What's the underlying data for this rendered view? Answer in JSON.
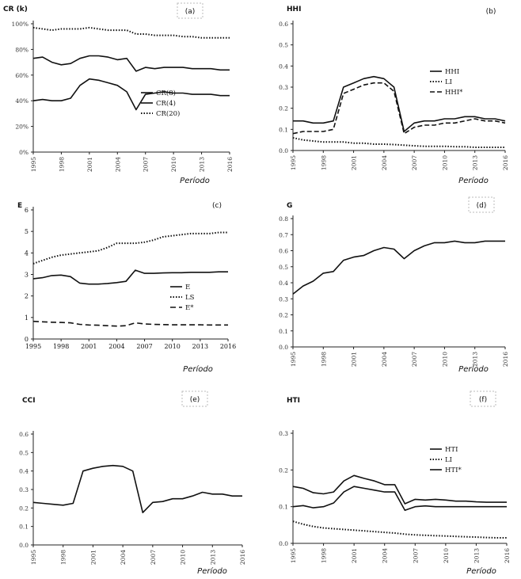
{
  "chart_data": [
    {
      "panel": "(a)",
      "type": "line",
      "ylabel": "CR (k)",
      "xlabel": "Período",
      "ylim": [
        0,
        100
      ],
      "yticks": [
        "0%",
        "20%",
        "40%",
        "60%",
        "80%",
        "100%"
      ],
      "xticks": [
        "1995",
        "1998",
        "2001",
        "2004",
        "2007",
        "2010",
        "2013",
        "2016"
      ],
      "x": [
        1995,
        1996,
        1997,
        1998,
        1999,
        2000,
        2001,
        2002,
        2003,
        2004,
        2005,
        2006,
        2007,
        2008,
        2009,
        2010,
        2011,
        2012,
        2013,
        2014,
        2015,
        2016
      ],
      "series": [
        {
          "name": "CR(8)",
          "style": "solid",
          "values": [
            73,
            74,
            70,
            68,
            69,
            73,
            75,
            75,
            74,
            72,
            73,
            63,
            66,
            65,
            66,
            66,
            66,
            65,
            65,
            65,
            64,
            64
          ]
        },
        {
          "name": "CR(4)",
          "style": "solid",
          "values": [
            40,
            41,
            40,
            40,
            42,
            52,
            57,
            56,
            54,
            52,
            47,
            33,
            45,
            46,
            47,
            46,
            46,
            45,
            45,
            45,
            44,
            44
          ]
        },
        {
          "name": "CR(20)",
          "style": "dotted",
          "values": [
            97,
            96,
            95,
            96,
            96,
            96,
            97,
            96,
            95,
            95,
            95,
            92,
            92,
            91,
            91,
            91,
            90,
            90,
            89,
            89,
            89,
            89
          ]
        }
      ]
    },
    {
      "panel": "(b)",
      "type": "line",
      "ylabel": "HHI",
      "xlabel": "Período",
      "ylim": [
        0,
        0.6
      ],
      "yticks": [
        "0.0",
        "0.1",
        "0.2",
        "0.3",
        "0.4",
        "0.5",
        "0.6"
      ],
      "xticks": [
        "1995",
        "1998",
        "2001",
        "2004",
        "2007",
        "2010",
        "2013",
        "2016"
      ],
      "x": [
        1995,
        1996,
        1997,
        1998,
        1999,
        2000,
        2001,
        2002,
        2003,
        2004,
        2005,
        2006,
        2007,
        2008,
        2009,
        2010,
        2011,
        2012,
        2013,
        2014,
        2015,
        2016
      ],
      "series": [
        {
          "name": "HHI",
          "style": "solid",
          "values": [
            0.14,
            0.14,
            0.13,
            0.13,
            0.14,
            0.3,
            0.32,
            0.34,
            0.35,
            0.34,
            0.3,
            0.09,
            0.13,
            0.14,
            0.14,
            0.15,
            0.15,
            0.16,
            0.16,
            0.15,
            0.15,
            0.14
          ]
        },
        {
          "name": "LI",
          "style": "dotted",
          "values": [
            0.06,
            0.05,
            0.045,
            0.04,
            0.04,
            0.04,
            0.035,
            0.035,
            0.03,
            0.03,
            0.028,
            0.025,
            0.022,
            0.02,
            0.02,
            0.02,
            0.018,
            0.018,
            0.015,
            0.015,
            0.015,
            0.015
          ]
        },
        {
          "name": "HHI*",
          "style": "dashed",
          "values": [
            0.08,
            0.09,
            0.09,
            0.09,
            0.1,
            0.27,
            0.29,
            0.31,
            0.32,
            0.32,
            0.28,
            0.08,
            0.11,
            0.12,
            0.12,
            0.13,
            0.13,
            0.14,
            0.15,
            0.14,
            0.14,
            0.13
          ]
        }
      ]
    },
    {
      "panel": "(c)",
      "type": "line",
      "ylabel": "E",
      "xlabel": "Período",
      "ylim": [
        0,
        6
      ],
      "yticks": [
        "0",
        "1",
        "2",
        "3",
        "4",
        "5",
        "6"
      ],
      "xticks": [
        "1995",
        "1998",
        "2001",
        "2004",
        "2007",
        "2010",
        "2013",
        "2016"
      ],
      "x": [
        1995,
        1996,
        1997,
        1998,
        1999,
        2000,
        2001,
        2002,
        2003,
        2004,
        2005,
        2006,
        2007,
        2008,
        2009,
        2010,
        2011,
        2012,
        2013,
        2014,
        2015,
        2016
      ],
      "series": [
        {
          "name": "E",
          "style": "solid",
          "values": [
            2.8,
            2.85,
            2.95,
            2.97,
            2.9,
            2.6,
            2.55,
            2.55,
            2.58,
            2.62,
            2.68,
            3.2,
            3.05,
            3.05,
            3.07,
            3.08,
            3.08,
            3.1,
            3.1,
            3.1,
            3.12,
            3.12
          ]
        },
        {
          "name": "LS",
          "style": "dotted",
          "values": [
            3.5,
            3.65,
            3.8,
            3.9,
            3.95,
            4.0,
            4.05,
            4.1,
            4.25,
            4.45,
            4.45,
            4.45,
            4.5,
            4.6,
            4.75,
            4.8,
            4.85,
            4.9,
            4.9,
            4.9,
            4.95,
            4.95
          ]
        },
        {
          "name": "E*",
          "style": "dashed",
          "values": [
            0.82,
            0.8,
            0.78,
            0.77,
            0.75,
            0.68,
            0.65,
            0.64,
            0.62,
            0.6,
            0.62,
            0.75,
            0.7,
            0.68,
            0.67,
            0.66,
            0.66,
            0.66,
            0.66,
            0.65,
            0.65,
            0.65
          ]
        }
      ]
    },
    {
      "panel": "(d)",
      "type": "line",
      "ylabel": "G",
      "xlabel": "Período",
      "ylim": [
        0,
        0.8
      ],
      "yticks": [
        "0.0",
        "0.1",
        "0.2",
        "0.3",
        "0.4",
        "0.5",
        "0.6",
        "0.7",
        "0.8"
      ],
      "xticks": [
        "1995",
        "1998",
        "2001",
        "2004",
        "2007",
        "2010",
        "2013",
        "2016"
      ],
      "x": [
        1995,
        1996,
        1997,
        1998,
        1999,
        2000,
        2001,
        2002,
        2003,
        2004,
        2005,
        2006,
        2007,
        2008,
        2009,
        2010,
        2011,
        2012,
        2013,
        2014,
        2015,
        2016
      ],
      "series": [
        {
          "name": "G",
          "style": "solid",
          "values": [
            0.33,
            0.38,
            0.41,
            0.46,
            0.47,
            0.54,
            0.56,
            0.57,
            0.6,
            0.62,
            0.61,
            0.55,
            0.6,
            0.63,
            0.65,
            0.65,
            0.66,
            0.65,
            0.65,
            0.66,
            0.66,
            0.66
          ]
        }
      ]
    },
    {
      "panel": "(e)",
      "type": "line",
      "ylabel": "CCI",
      "xlabel": "Período",
      "ylim": [
        0,
        0.6
      ],
      "yticks": [
        "0.0",
        "0.1",
        "0.2",
        "0.3",
        "0.4",
        "0.5",
        "0.6"
      ],
      "xticks": [
        "1995",
        "1998",
        "2001",
        "2004",
        "2007",
        "2010",
        "2013",
        "2016"
      ],
      "x": [
        1995,
        1996,
        1997,
        1998,
        1999,
        2000,
        2001,
        2002,
        2003,
        2004,
        2005,
        2006,
        2007,
        2008,
        2009,
        2010,
        2011,
        2012,
        2013,
        2014,
        2015,
        2016
      ],
      "series": [
        {
          "name": "CCI",
          "style": "solid",
          "values": [
            0.23,
            0.225,
            0.22,
            0.215,
            0.225,
            0.4,
            0.415,
            0.425,
            0.43,
            0.425,
            0.4,
            0.175,
            0.23,
            0.235,
            0.25,
            0.25,
            0.265,
            0.285,
            0.275,
            0.275,
            0.265,
            0.265
          ]
        }
      ]
    },
    {
      "panel": "(f)",
      "type": "line",
      "ylabel": "HTI",
      "xlabel": "Período",
      "ylim": [
        0,
        0.3
      ],
      "yticks": [
        "0.0",
        "0.1",
        "0.2",
        "0.3"
      ],
      "xticks": [
        "1995",
        "1998",
        "2001",
        "2004",
        "2007",
        "2010",
        "2013",
        "2016"
      ],
      "x": [
        1995,
        1996,
        1997,
        1998,
        1999,
        2000,
        2001,
        2002,
        2003,
        2004,
        2005,
        2006,
        2007,
        2008,
        2009,
        2010,
        2011,
        2012,
        2013,
        2014,
        2015,
        2016
      ],
      "series": [
        {
          "name": "HTI",
          "style": "solid",
          "values": [
            0.155,
            0.15,
            0.138,
            0.135,
            0.14,
            0.17,
            0.185,
            0.177,
            0.17,
            0.16,
            0.16,
            0.108,
            0.12,
            0.118,
            0.12,
            0.118,
            0.115,
            0.115,
            0.113,
            0.112,
            0.112,
            0.112
          ]
        },
        {
          "name": "LI",
          "style": "dotted",
          "values": [
            0.06,
            0.052,
            0.046,
            0.042,
            0.04,
            0.038,
            0.036,
            0.034,
            0.032,
            0.03,
            0.028,
            0.025,
            0.023,
            0.022,
            0.021,
            0.02,
            0.019,
            0.018,
            0.017,
            0.016,
            0.015,
            0.015
          ]
        },
        {
          "name": "HTI*",
          "style": "solid",
          "values": [
            0.1,
            0.103,
            0.097,
            0.1,
            0.11,
            0.14,
            0.155,
            0.15,
            0.145,
            0.14,
            0.14,
            0.09,
            0.1,
            0.102,
            0.1,
            0.1,
            0.1,
            0.1,
            0.1,
            0.1,
            0.1,
            0.1
          ]
        }
      ]
    }
  ]
}
